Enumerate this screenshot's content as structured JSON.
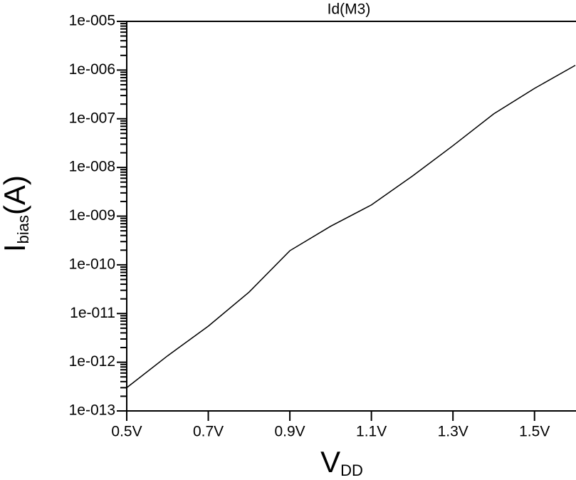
{
  "chart_data": {
    "type": "line",
    "log_y": true,
    "title": "Id(M3)",
    "x_label_parts": [
      "V",
      "DD"
    ],
    "y_label_parts": [
      "I",
      "bias",
      "(A)"
    ],
    "x": [
      0.5,
      0.6,
      0.7,
      0.8,
      0.9,
      1.0,
      1.1,
      1.2,
      1.3,
      1.4,
      1.5,
      1.6
    ],
    "series": [
      {
        "name": "Id(M3)",
        "color": "#000000",
        "values": [
          3e-13,
          1.35e-12,
          5.5e-12,
          2.75e-11,
          1.95e-10,
          6.2e-10,
          1.7e-09,
          6.6e-09,
          2.8e-08,
          1.26e-07,
          4.2e-07,
          1.25e-06
        ]
      }
    ],
    "xlim": [
      0.5,
      1.6
    ],
    "xticks": [
      {
        "value": 0.5,
        "label": "0.5V"
      },
      {
        "value": 0.7,
        "label": "0.7V"
      },
      {
        "value": 0.9,
        "label": "0.9V"
      },
      {
        "value": 1.1,
        "label": "1.1V"
      },
      {
        "value": 1.3,
        "label": "1.3V"
      },
      {
        "value": 1.5,
        "label": "1.5V"
      }
    ],
    "ylim": [
      1e-13,
      1e-05
    ],
    "yticks": [
      {
        "value": 1e-13,
        "label": "1e-013"
      },
      {
        "value": 1e-12,
        "label": "1e-012"
      },
      {
        "value": 1e-11,
        "label": "1e-011"
      },
      {
        "value": 1e-10,
        "label": "1e-010"
      },
      {
        "value": 1e-09,
        "label": "1e-009"
      },
      {
        "value": 1e-08,
        "label": "1e-008"
      },
      {
        "value": 1e-07,
        "label": "1e-007"
      },
      {
        "value": 1e-06,
        "label": "1e-006"
      },
      {
        "value": 1e-05,
        "label": "1e-005"
      }
    ]
  }
}
